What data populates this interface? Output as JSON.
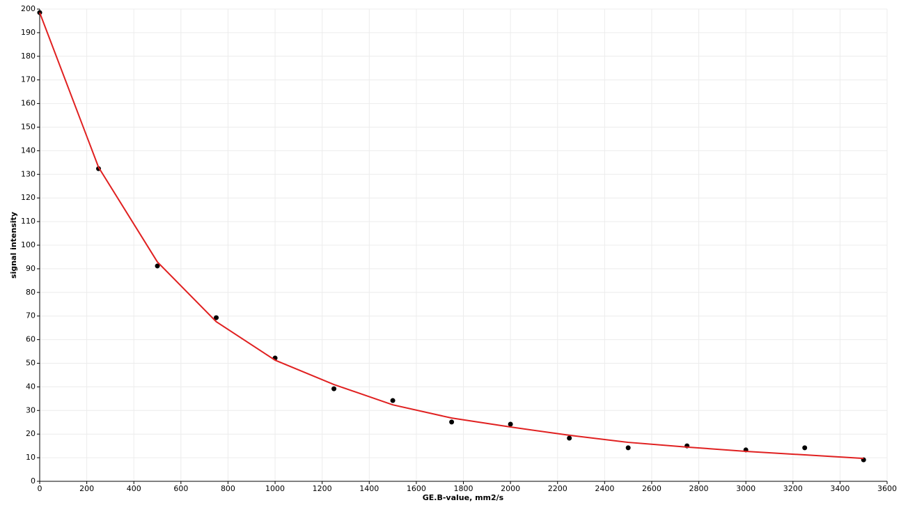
{
  "chart_data": {
    "type": "scatter",
    "x_label": "GE.B-value, mm2/s",
    "y_label": "signal intensity",
    "xlim": [
      0,
      3600
    ],
    "ylim": [
      0,
      200
    ],
    "xticks": [
      0,
      200,
      400,
      600,
      800,
      1000,
      1200,
      1400,
      1600,
      1800,
      2000,
      2200,
      2400,
      2600,
      2800,
      3000,
      3200,
      3400,
      3600
    ],
    "yticks": [
      0,
      10,
      20,
      30,
      40,
      50,
      60,
      70,
      80,
      90,
      100,
      110,
      120,
      130,
      140,
      150,
      160,
      170,
      180,
      190,
      200
    ],
    "grid": true,
    "x": [
      0,
      250,
      500,
      750,
      1000,
      1250,
      1500,
      1750,
      2000,
      2250,
      2500,
      2750,
      3000,
      3250,
      3500
    ],
    "series": [
      {
        "type": "scatter",
        "color": "#000000",
        "values": [
          198.5,
          132.4,
          91.2,
          69.3,
          52.2,
          39.2,
          34.2,
          25.1,
          24.2,
          18.3,
          14.2,
          15.0,
          13.3,
          14.2,
          9.1
        ]
      },
      {
        "type": "line",
        "color": "#e02020",
        "values": [
          198.5,
          133,
          92.9,
          67.6,
          51.3,
          41,
          32.4,
          26.8,
          23,
          19.5,
          16.5,
          14.5,
          12.7,
          11.2,
          9.7
        ]
      }
    ]
  }
}
